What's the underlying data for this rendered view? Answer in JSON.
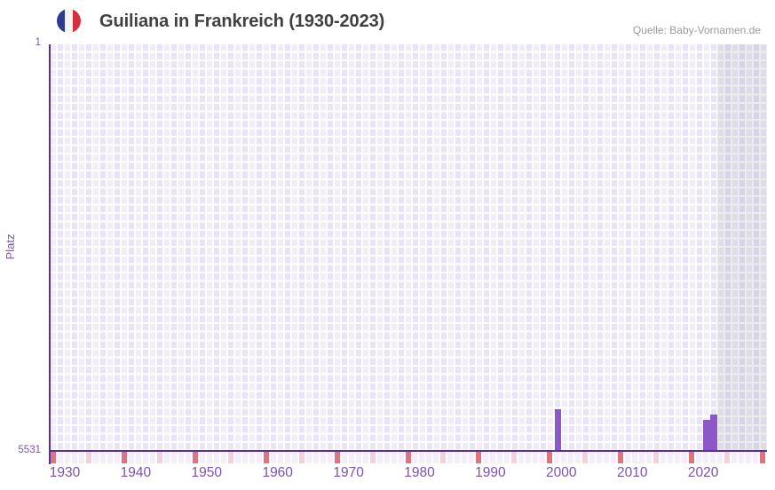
{
  "header": {
    "title": "Guiliana in Frankreich (1930-2023)",
    "source": "Quelle: Baby-Vornamen.de",
    "flag_colors": {
      "blue": "#2d3a8e",
      "white": "#f4f4f4",
      "red": "#d6303f"
    }
  },
  "chart_data": {
    "type": "bar",
    "title": "Guiliana in Frankreich (1930-2023)",
    "ylabel": "Platz",
    "y_axis": {
      "top_tick_label": "1",
      "bottom_tick_label": "5531",
      "min": 1,
      "max": 5531,
      "inverted": true
    },
    "x_axis": {
      "start_year": 1930,
      "rendered_end_year": 2030,
      "data_end_year": 2023,
      "tick_years": [
        1930,
        1940,
        1950,
        1960,
        1970,
        1980,
        1990,
        2000,
        2010,
        2020
      ]
    },
    "series": [
      {
        "name": "Platz",
        "points": [
          {
            "year": 2001,
            "rank": 4964
          },
          {
            "year": 2022,
            "rank": 5110
          },
          {
            "year": 2023,
            "rank": 5037
          }
        ]
      }
    ],
    "legend": null,
    "grid": true,
    "colors": {
      "bar": "#8e57c7",
      "axis_line": "#5c2e91",
      "axis_text": "#7b52ae",
      "cell_light": "#f1edfa",
      "cell_dark": "#e9e4f5",
      "decade_tick_cell": "#e2737e",
      "half_decade_tick_cell": "#f3d0dd",
      "plain_tick_cell": "#f3eef9",
      "future_band_overlay": "rgba(112,110,128,0.13)",
      "title_text": "#404040",
      "source_text": "#9b9b9b"
    }
  }
}
